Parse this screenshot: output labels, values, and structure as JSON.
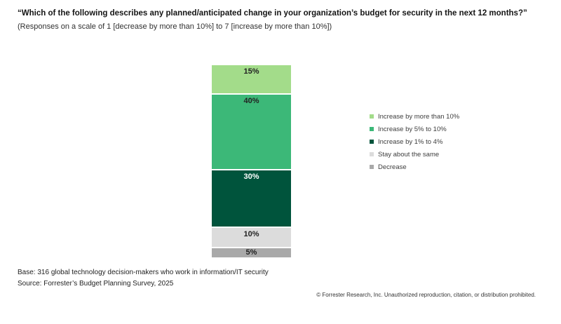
{
  "header": {
    "title": "“Which of the following describes any planned/anticipated change in your organization’s budget for security in the next 12 months?”",
    "subtitle": "(Responses on a scale of 1 [decrease by more than 10%] to 7 [increase by more than 10%])"
  },
  "chart_data": {
    "type": "bar",
    "variant": "stacked-vertical-single-column",
    "title": "“Which of the following describes any planned/anticipated change in your organization’s budget for security in the next 12 months?”",
    "unit": "%",
    "total": 100,
    "legend_position": "right",
    "categories": [
      "Increase by more than 10%",
      "Increase by 5% to 10%",
      "Increase by 1% to 4%",
      "Stay about the same",
      "Decrease"
    ],
    "values": [
      15,
      40,
      30,
      10,
      5
    ],
    "segments": [
      {
        "label": "Increase by more than 10%",
        "value": 15,
        "display": "15%",
        "color": "#A3DC8A",
        "value_color": "#222222"
      },
      {
        "label": "Increase by 5% to 10%",
        "value": 40,
        "display": "40%",
        "color": "#3CB878",
        "value_color": "#222222"
      },
      {
        "label": "Increase by 1% to 4%",
        "value": 30,
        "display": "30%",
        "color": "#00543C",
        "value_color": "#FFFFFF"
      },
      {
        "label": "Stay about the same",
        "value": 10,
        "display": "10%",
        "color": "#DCDCDC",
        "value_color": "#222222"
      },
      {
        "label": "Decrease",
        "value": 5,
        "display": "5%",
        "color": "#A9A9A9",
        "value_color": "#222222"
      }
    ]
  },
  "footer": {
    "base": "Base: 316 global technology decision-makers who work in information/IT security",
    "source": "Source: Forrester’s Budget Planning Survey, 2025",
    "copyright": "© Forrester Research, Inc. Unauthorized reproduction, citation, or distribution prohibited."
  }
}
